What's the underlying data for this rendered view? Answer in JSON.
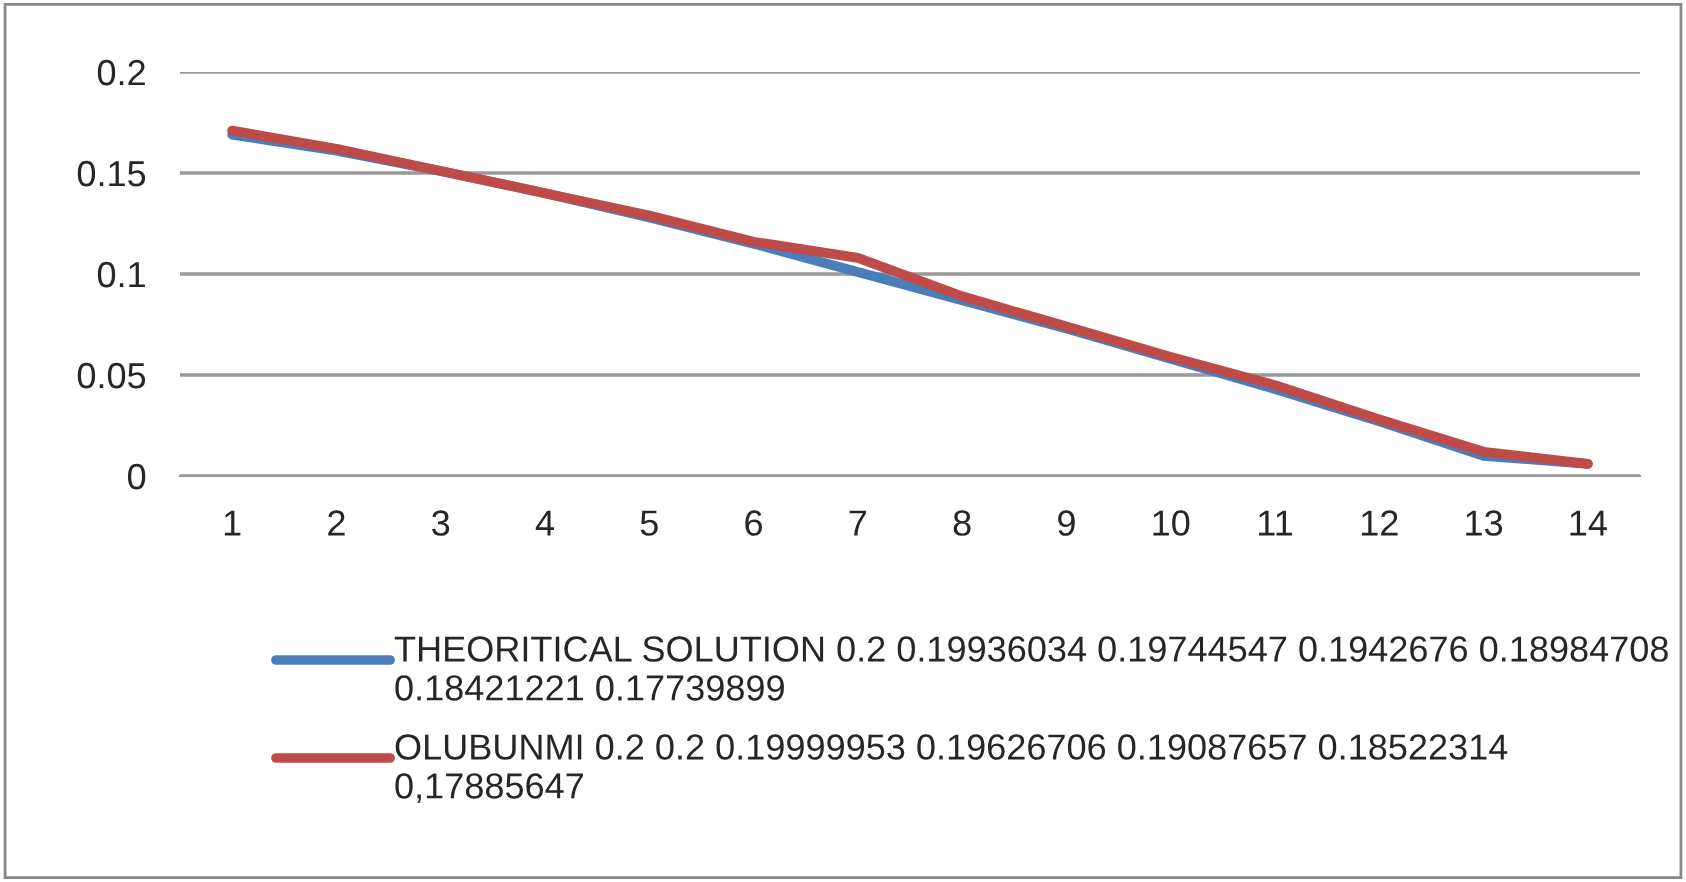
{
  "chart_data": {
    "type": "line",
    "categories": [
      "1",
      "2",
      "3",
      "4",
      "5",
      "6",
      "7",
      "8",
      "9",
      "10",
      "11",
      "12",
      "13",
      "14"
    ],
    "series": [
      {
        "name": "THEORITICAL SOLUTION 0.2 0.19936034 0.19744547 0.1942676 0.18984708 0.18421221 0.17739899",
        "color": "#4a7ebb",
        "values": [
          0.169,
          0.161,
          0.151,
          0.14,
          0.128,
          0.115,
          0.101,
          0.087,
          0.073,
          0.058,
          0.043,
          0.027,
          0.01,
          0.006
        ]
      },
      {
        "name": "OLUBUNMI 0.2 0.2 0.19999953 0.19626706 0.19087657 0.18522314 0,17885647",
        "color": "#be4b48",
        "values": [
          0.171,
          0.162,
          0.151,
          0.14,
          0.129,
          0.116,
          0.108,
          0.089,
          0.074,
          0.059,
          0.045,
          0.028,
          0.012,
          0.006
        ]
      }
    ],
    "ylim": [
      0,
      0.2
    ],
    "yticks": [
      0,
      0.05,
      0.1,
      0.15,
      0.2
    ],
    "grid": "y",
    "legend": "bottom",
    "marker": "none",
    "line_style": "solid"
  }
}
